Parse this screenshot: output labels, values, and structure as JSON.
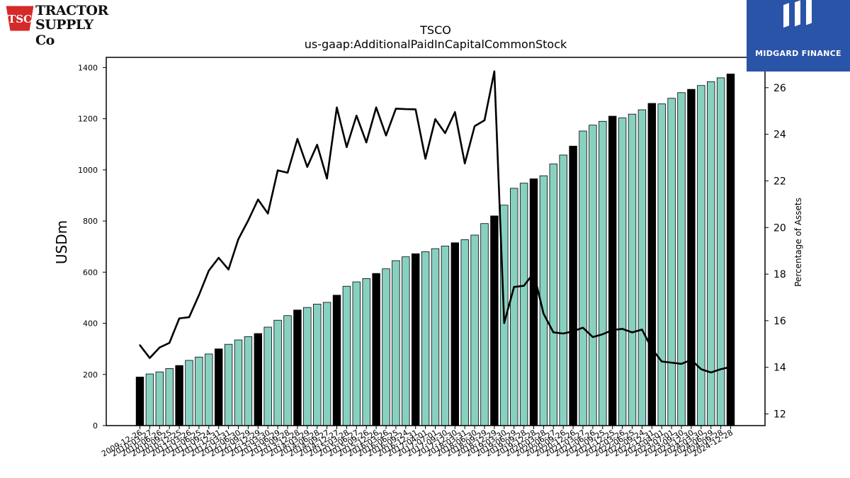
{
  "logos": {
    "left": {
      "line1": "TRACTOR",
      "line2": "SUPPLY Co",
      "badge": "TSC"
    },
    "right": {
      "name": "MIDGARD FINANCE"
    }
  },
  "colors": {
    "bar_teal": "#88d1c1",
    "bar_black": "#000000",
    "line": "#000000",
    "brand_blue": "#2a54a8",
    "brand_red": "#d42a2a"
  },
  "chart_data": {
    "type": "bar",
    "title": "TSCO",
    "subtitle": "us-gaap:AdditionalPaidInCapitalCommonStock",
    "ylabel": "USDm",
    "y2label": "Percentage of Assets",
    "ylim": [
      0,
      1440
    ],
    "y2lim": [
      11.5,
      27.3
    ],
    "yticks": [
      0,
      200,
      400,
      600,
      800,
      1000,
      1200,
      1400
    ],
    "y2ticks": [
      12,
      14,
      16,
      18,
      20,
      22,
      24,
      26
    ],
    "x": [
      "2009-12-26",
      "2010-03-27",
      "2010-06-26",
      "2010-09-25",
      "2010-12-25",
      "2011-03-26",
      "2011-06-25",
      "2011-09-24",
      "2011-12-31",
      "2012-03-31",
      "2012-06-30",
      "2012-09-29",
      "2012-12-29",
      "2013-03-30",
      "2013-06-29",
      "2013-09-28",
      "2013-12-28",
      "2014-03-29",
      "2014-06-28",
      "2014-09-27",
      "2014-12-27",
      "2015-03-28",
      "2015-06-27",
      "2015-09-26",
      "2015-12-26",
      "2016-03-26",
      "2016-06-25",
      "2016-09-24",
      "2016-12-31",
      "2017-04-01",
      "2017-07-01",
      "2017-09-30",
      "2017-12-30",
      "2018-03-31",
      "2018-06-30",
      "2018-09-29",
      "2018-12-29",
      "2019-03-30",
      "2019-06-29",
      "2019-09-28",
      "2019-12-28",
      "2020-03-28",
      "2020-06-27",
      "2020-09-26",
      "2020-12-26",
      "2021-03-27",
      "2021-06-26",
      "2021-09-25",
      "2021-12-25",
      "2022-03-26",
      "2022-06-25",
      "2022-09-24",
      "2022-12-31",
      "2023-04-01",
      "2023-07-01",
      "2023-09-30",
      "2023-12-30",
      "2024-03-30",
      "2024-06-29",
      "2024-09-28",
      "2024-12-28"
    ],
    "tick_labels": [
      "2009-12-26",
      "2010-03-27",
      "2010-06-26",
      "2010-09-25",
      "2010-12-25",
      "2011-03-26",
      "2011-06-25",
      "2011-09-24",
      "2011-12-31",
      "2012-03-31",
      "2012-06-30",
      "2012-09-29",
      "2012-12-29",
      "2013-03-30",
      "2013-06-29",
      "2013-09-28",
      "2013-12-28",
      "2014-03-29",
      "2014-06-28",
      "2014-09-27",
      "2014-12-27",
      "2015-03-28",
      "2015-06-27",
      "2015-09-26",
      "2015-12-26",
      "2016-03-26",
      "2016-06-25",
      "2016-09-24",
      "2016-12-31",
      "2017-04-01",
      "2017-07-01",
      "2017-09-30",
      "2017-12-30",
      "2018-03-31",
      "2018-06-30",
      "2018-09-29",
      "2018-12-29",
      "2019-03-30",
      "2019-06-29",
      "2019-09-28",
      "2019-12-28",
      "2020-03-28",
      "2020-06-27",
      "2020-09-26",
      "2020-12-26",
      "2021-03-27",
      "2021-06-26",
      "2021-09-25",
      "2021-12-25",
      "2022-03-26",
      "2022-06-25",
      "2022-09-24",
      "2022-12-31",
      "2023-04-01",
      "2023-07-01",
      "2023-09-30",
      "2023-12-30",
      "2024-03-30",
      "2024-06-29",
      "2024-09-28",
      "2024-12-28"
    ],
    "values": [
      190,
      202,
      210,
      223,
      235,
      255,
      268,
      280,
      300,
      318,
      335,
      348,
      360,
      385,
      412,
      430,
      452,
      462,
      475,
      482,
      510,
      545,
      562,
      575,
      595,
      613,
      645,
      660,
      672,
      680,
      692,
      702,
      715,
      727,
      745,
      790,
      820,
      862,
      928,
      948,
      965,
      977,
      1023,
      1058,
      1093,
      1152,
      1175,
      1190,
      1210,
      1203,
      1218,
      1235,
      1260,
      1258,
      1280,
      1302,
      1315,
      1330,
      1345,
      1360,
      1375
    ],
    "highlight": [
      true,
      false,
      false,
      false,
      true,
      false,
      false,
      false,
      true,
      false,
      false,
      false,
      true,
      false,
      false,
      false,
      true,
      false,
      false,
      false,
      true,
      false,
      false,
      false,
      true,
      false,
      false,
      false,
      true,
      false,
      false,
      false,
      true,
      false,
      false,
      false,
      true,
      false,
      false,
      false,
      true,
      false,
      false,
      false,
      true,
      false,
      false,
      false,
      true,
      false,
      false,
      false,
      true,
      false,
      false,
      false,
      true,
      false,
      false,
      false,
      true
    ],
    "line": {
      "values": [
        14.95,
        14.4,
        14.85,
        15.05,
        16.1,
        16.15,
        17.1,
        18.15,
        18.7,
        18.2,
        19.5,
        20.3,
        21.2,
        20.6,
        22.45,
        22.35,
        23.8,
        22.6,
        23.55,
        22.1,
        25.15,
        23.45,
        24.8,
        23.65,
        25.15,
        23.95,
        25.1,
        25.08,
        25.07,
        22.95,
        24.65,
        24.05,
        24.95,
        22.75,
        24.35,
        24.6,
        26.7,
        15.9,
        17.45,
        17.5,
        18.05,
        16.3,
        15.5,
        15.45,
        15.55,
        15.7,
        15.3,
        15.42,
        15.6,
        15.65,
        15.5,
        15.62,
        14.8,
        14.25,
        14.2,
        14.15,
        14.32,
        13.92,
        13.78,
        13.92,
        14.02
      ]
    },
    "grid": false
  }
}
